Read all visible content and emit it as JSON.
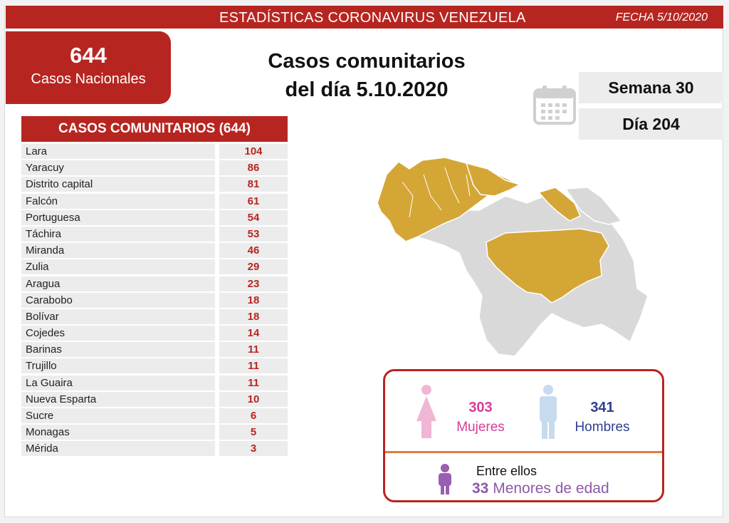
{
  "header": {
    "title": "ESTADÍSTICAS CORONAVIRUS VENEZUELA",
    "date": "FECHA 5/10/2020"
  },
  "national": {
    "count": "644",
    "label": "Casos Nacionales"
  },
  "headline": {
    "line1": "Casos comunitarios",
    "line2": "del día 5.10.2020"
  },
  "calendar": {
    "week": "Semana 30",
    "day": "Día 204",
    "icon": "calendar-icon"
  },
  "table": {
    "title": "CASOS COMUNITARIOS (644)",
    "rows": [
      {
        "name": "Lara",
        "value": "104"
      },
      {
        "name": "Yaracuy",
        "value": "86"
      },
      {
        "name": "Distrito capital",
        "value": "81"
      },
      {
        "name": "Falcón",
        "value": "61"
      },
      {
        "name": "Portuguesa",
        "value": "54"
      },
      {
        "name": "Táchira",
        "value": "53"
      },
      {
        "name": "Miranda",
        "value": "46"
      },
      {
        "name": "Zulia",
        "value": "29"
      },
      {
        "name": "Aragua",
        "value": "23"
      },
      {
        "name": "Carabobo",
        "value": "18"
      },
      {
        "name": "Bolívar",
        "value": "18"
      },
      {
        "name": "Cojedes",
        "value": "14"
      },
      {
        "name": "Barinas",
        "value": "11"
      },
      {
        "name": "Trujillo",
        "value": "11"
      },
      {
        "name": "La Guaira",
        "value": "11"
      },
      {
        "name": "Nueva Esparta",
        "value": "10"
      },
      {
        "name": "Sucre",
        "value": "6"
      },
      {
        "name": "Monagas",
        "value": "5"
      },
      {
        "name": "Mérida",
        "value": "3"
      }
    ]
  },
  "demographics": {
    "women_count": "303",
    "women_label": "Mujeres",
    "men_count": "341",
    "men_label": "Hombres",
    "among_label": "Entre ellos",
    "minors_count": "33",
    "minors_label": "Menores de edad"
  },
  "colors": {
    "brand_red": "#b72520",
    "map_highlight": "#d4a636",
    "map_other": "#d9d9d9",
    "women": "#d63c9a",
    "men": "#2e3f8f",
    "minors": "#8e58a8",
    "divider": "#e07b3b"
  }
}
